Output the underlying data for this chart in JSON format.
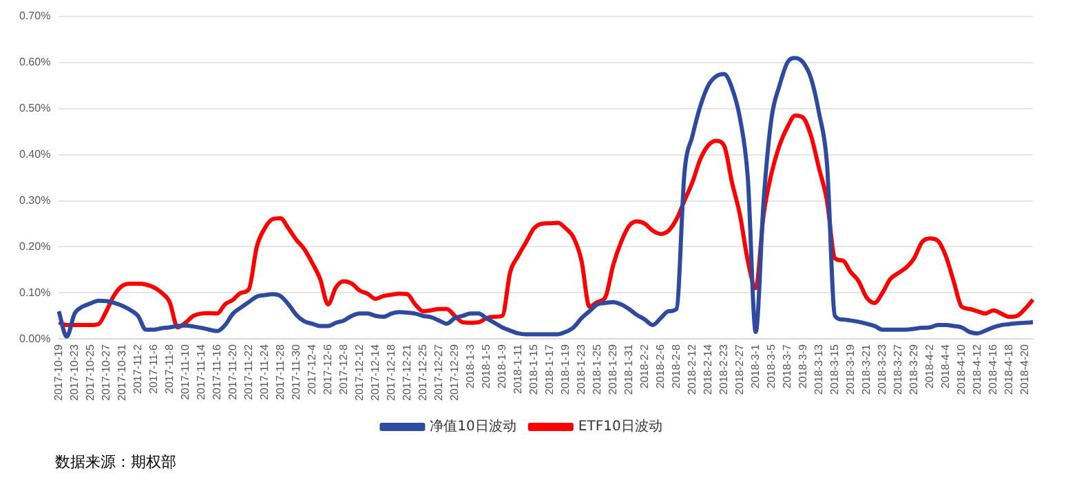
{
  "chart_data": {
    "type": "line",
    "categories": [
      "2017-10-19",
      null,
      "2017-10-23",
      null,
      "2017-10-25",
      null,
      "2017-10-27",
      null,
      "2017-10-31",
      null,
      "2017-11-2",
      null,
      "2017-11-6",
      null,
      "2017-11-8",
      null,
      "2017-11-10",
      null,
      "2017-11-14",
      null,
      "2017-11-16",
      null,
      "2017-11-20",
      null,
      "2017-11-22",
      null,
      "2017-11-24",
      null,
      "2017-11-28",
      null,
      "2017-11-30",
      null,
      "2017-12-4",
      null,
      "2017-12-6",
      null,
      "2017-12-8",
      null,
      "2017-12-12",
      null,
      "2017-12-14",
      null,
      "2017-12-18",
      null,
      "2017-12-21",
      null,
      "2017-12-25",
      null,
      "2017-12-27",
      null,
      "2017-12-29",
      null,
      "2018-1-3",
      null,
      "2018-1-5",
      null,
      "2018-1-9",
      null,
      "2018-1-11",
      null,
      "2018-1-15",
      null,
      "2018-1-17",
      null,
      "2018-1-19",
      null,
      "2018-1-23",
      null,
      "2018-1-25",
      null,
      "2018-1-29",
      null,
      "2018-1-31",
      null,
      "2018-2-2",
      null,
      "2018-2-6",
      null,
      "2018-2-8",
      null,
      "2018-2-12",
      null,
      "2018-2-14",
      null,
      "2018-2-23",
      null,
      "2018-2-27",
      null,
      "2018-3-1",
      null,
      "2018-3-5",
      null,
      "2018-3-7",
      null,
      "2018-3-9",
      null,
      "2018-3-13",
      null,
      "2018-3-15",
      null,
      "2018-3-19",
      null,
      "2018-3-21",
      null,
      "2018-3-23",
      null,
      "2018-3-27",
      null,
      "2018-3-29",
      null,
      "2018-4-2",
      null,
      "2018-4-4",
      null,
      "2018-4-10",
      null,
      "2018-4-12",
      null,
      "2018-4-16",
      null,
      "2018-4-18",
      null,
      "2018-4-20",
      null
    ],
    "series": [
      {
        "name": "净值10日波动",
        "color": "#2e4a9e",
        "values": [
          0.06,
          0.005,
          0.055,
          0.07,
          0.077,
          0.083,
          0.082,
          0.078,
          0.072,
          0.063,
          0.05,
          0.02,
          0.02,
          0.023,
          0.025,
          0.028,
          0.029,
          0.027,
          0.024,
          0.02,
          0.017,
          0.03,
          0.055,
          0.068,
          0.08,
          0.092,
          0.095,
          0.097,
          0.093,
          0.075,
          0.052,
          0.038,
          0.033,
          0.028,
          0.028,
          0.035,
          0.04,
          0.05,
          0.055,
          0.055,
          0.05,
          0.048,
          0.055,
          0.058,
          0.057,
          0.055,
          0.05,
          0.047,
          0.04,
          0.033,
          0.045,
          0.05,
          0.055,
          0.055,
          0.045,
          0.035,
          0.025,
          0.018,
          0.012,
          0.01,
          0.01,
          0.01,
          0.01,
          0.01,
          0.015,
          0.025,
          0.045,
          0.06,
          0.075,
          0.078,
          0.08,
          0.075,
          0.065,
          0.052,
          0.042,
          0.03,
          0.045,
          0.06,
          0.065,
          0.36,
          0.44,
          0.505,
          0.55,
          0.57,
          0.575,
          0.545,
          0.48,
          0.35,
          0.015,
          0.3,
          0.48,
          0.55,
          0.6,
          0.61,
          0.6,
          0.565,
          0.49,
          0.38,
          0.05,
          0.042,
          0.04,
          0.037,
          0.033,
          0.028,
          0.02,
          0.02,
          0.02,
          0.02,
          0.022,
          0.024,
          0.025,
          0.03,
          0.03,
          0.028,
          0.025,
          0.015,
          0.012,
          0.018,
          0.025,
          0.03,
          0.032,
          0.034,
          0.035,
          0.036
        ]
      },
      {
        "name": "ETF10日波动",
        "color": "#ff0000",
        "values": [
          0.036,
          0.03,
          0.03,
          0.03,
          0.03,
          0.032,
          0.06,
          0.095,
          0.115,
          0.12,
          0.12,
          0.118,
          0.112,
          0.1,
          0.08,
          0.025,
          0.035,
          0.05,
          0.055,
          0.056,
          0.055,
          0.075,
          0.085,
          0.1,
          0.108,
          0.2,
          0.24,
          0.26,
          0.262,
          0.24,
          0.215,
          0.195,
          0.165,
          0.13,
          0.075,
          0.112,
          0.125,
          0.12,
          0.105,
          0.098,
          0.087,
          0.093,
          0.096,
          0.098,
          0.097,
          0.075,
          0.06,
          0.062,
          0.065,
          0.065,
          0.05,
          0.036,
          0.035,
          0.036,
          0.045,
          0.048,
          0.05,
          0.145,
          0.18,
          0.21,
          0.24,
          0.25,
          0.251,
          0.252,
          0.24,
          0.22,
          0.17,
          0.07,
          0.08,
          0.09,
          0.16,
          0.21,
          0.245,
          0.255,
          0.25,
          0.235,
          0.228,
          0.235,
          0.26,
          0.3,
          0.34,
          0.39,
          0.42,
          0.43,
          0.42,
          0.34,
          0.27,
          0.17,
          0.11,
          0.27,
          0.36,
          0.42,
          0.46,
          0.485,
          0.48,
          0.44,
          0.37,
          0.3,
          0.175,
          0.17,
          0.145,
          0.125,
          0.09,
          0.078,
          0.1,
          0.13,
          0.143,
          0.155,
          0.175,
          0.21,
          0.218,
          0.213,
          0.18,
          0.125,
          0.07,
          0.065,
          0.06,
          0.055,
          0.062,
          0.055,
          0.048,
          0.05,
          0.065,
          0.085
        ]
      }
    ],
    "ylim": [
      0,
      0.7
    ],
    "yticks": [
      {
        "value": 0,
        "label": "0.00%"
      },
      {
        "value": 0.1,
        "label": "0.10%"
      },
      {
        "value": 0.2,
        "label": "0.20%"
      },
      {
        "value": 0.3,
        "label": "0.30%"
      },
      {
        "value": 0.4,
        "label": "0.40%"
      },
      {
        "value": 0.5,
        "label": "0.50%"
      },
      {
        "value": 0.6,
        "label": "0.60%"
      },
      {
        "value": 0.7,
        "label": "0.70%"
      }
    ],
    "grid": "y",
    "legend": "bottom",
    "marker": "none",
    "line_style": "solid",
    "annotations": [
      "数据来源：期权部"
    ]
  }
}
